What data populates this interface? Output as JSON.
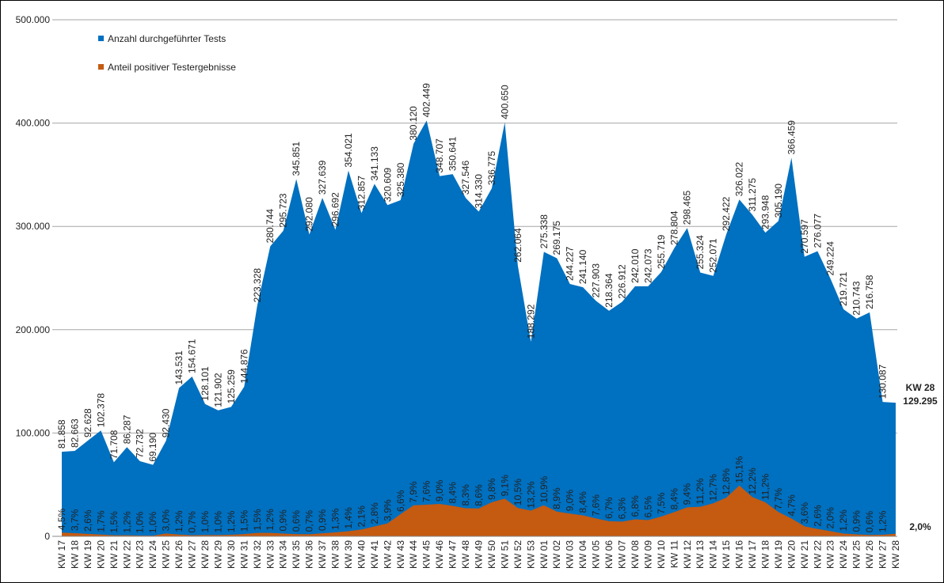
{
  "chart_data": {
    "type": "area",
    "categories": [
      "KW 17",
      "KW 18",
      "KW 19",
      "KW 20",
      "KW 21",
      "KW 22",
      "KW 23",
      "KW 24",
      "KW 25",
      "KW 26",
      "KW 27",
      "KW 28",
      "KW 29",
      "KW 30",
      "KW 31",
      "KW 32",
      "KW 33",
      "KW 34",
      "KW 35",
      "KW 36",
      "KW 37",
      "KW 38",
      "KW 39",
      "KW 40",
      "KW 41",
      "KW 42",
      "KW 43",
      "KW 44",
      "KW 45",
      "KW 46",
      "KW 47",
      "KW 48",
      "KW 49",
      "KW 50",
      "KW 51",
      "KW 52",
      "KW 53",
      "KW 01",
      "KW 02",
      "KW 03",
      "KW 04",
      "KW 05",
      "KW 06",
      "KW 07",
      "KW 08",
      "KW 09",
      "KW 10",
      "KW 11",
      "KW 12",
      "KW 13",
      "KW 14",
      "KW 15",
      "KW 16",
      "KW 17",
      "KW 18",
      "KW 19",
      "KW 20",
      "KW 21",
      "KW 22",
      "KW 23",
      "KW 24",
      "KW 25",
      "KW 26",
      "KW 27",
      "KW 28"
    ],
    "series": [
      {
        "name": "Anzahl durchgeführter Tests",
        "color": "#0070c0",
        "values": [
          81858,
          82663,
          92628,
          102378,
          71708,
          86287,
          72732,
          69190,
          92430,
          143531,
          154671,
          128101,
          121902,
          125259,
          144876,
          223328,
          280744,
          295723,
          345851,
          292080,
          327639,
          296692,
          354021,
          312857,
          341133,
          320609,
          325380,
          380120,
          402449,
          348707,
          350641,
          327546,
          314330,
          336775,
          400650,
          262064,
          188292,
          275338,
          269175,
          244227,
          241140,
          227903,
          218364,
          226912,
          242010,
          242073,
          255719,
          278804,
          298465,
          255324,
          252071,
          292422,
          326022,
          311275,
          293948,
          305190,
          366459,
          270597,
          276077,
          249224,
          219721,
          210743,
          216758,
          130087,
          129295
        ],
        "value_labels": [
          "81.858",
          "82.663",
          "92.628",
          "102.378",
          "71.708",
          "86.287",
          "72.732",
          "69.190",
          "92.430",
          "143.531",
          "154.671",
          "128.101",
          "121.902",
          "125.259",
          "144.876",
          "223.328",
          "280.744",
          "295.723",
          "345.851",
          "292.080",
          "327.639",
          "296.692",
          "354.021",
          "312.857",
          "341.133",
          "320.609",
          "325.380",
          "380.120",
          "402.449",
          "348.707",
          "350.641",
          "327.546",
          "314.330",
          "336.775",
          "400.650",
          "262.064",
          "188.292",
          "275.338",
          "269.175",
          "244.227",
          "241.140",
          "227.903",
          "218.364",
          "226.912",
          "242.010",
          "242.073",
          "255.719",
          "278.804",
          "298.465",
          "255.324",
          "252.071",
          "292.422",
          "326.022",
          "311.275",
          "293.948",
          "305.190",
          "366.459",
          "270.597",
          "276.077",
          "249.224",
          "219.721",
          "210.743",
          "216.758",
          "130.087",
          "129.295"
        ]
      },
      {
        "name": "Anteil positiver Testergebnisse",
        "color": "#c55a11",
        "values": [
          4.5,
          3.7,
          2.6,
          1.7,
          1.5,
          1.2,
          1.0,
          1.0,
          3.0,
          1.2,
          0.7,
          1.0,
          1.0,
          1.2,
          1.5,
          1.5,
          1.2,
          0.9,
          0.6,
          0.7,
          0.9,
          1.3,
          1.4,
          2.1,
          2.8,
          3.9,
          6.6,
          7.9,
          7.6,
          9.0,
          8.4,
          8.3,
          8.6,
          9.8,
          9.1,
          10.5,
          13.2,
          10.9,
          8.9,
          9.0,
          8.4,
          7.6,
          6.7,
          6.3,
          6.8,
          6.5,
          7.5,
          8.4,
          9.4,
          11.2,
          12.7,
          12.8,
          15.1,
          12.2,
          11.2,
          7.7,
          4.7,
          3.6,
          2.6,
          2.0,
          1.2,
          0.9,
          0.6,
          1.2,
          2.0
        ],
        "value_labels": [
          "4,5%",
          "3,7%",
          "2,6%",
          "1,7%",
          "1,5%",
          "1,2%",
          "1,0%",
          "1,0%",
          "3,0%",
          "1,2%",
          "0,7%",
          "1,0%",
          "1,0%",
          "1,2%",
          "1,5%",
          "1,5%",
          "1,2%",
          "0,9%",
          "0,6%",
          "0,7%",
          "0,9%",
          "1,3%",
          "1,4%",
          "2,1%",
          "2,8%",
          "3,9%",
          "6,6%",
          "7,9%",
          "7,6%",
          "9,0%",
          "8,4%",
          "8,3%",
          "8,6%",
          "9,8%",
          "9,1%",
          "10,5%",
          "13,2%",
          "10,9%",
          "8,9%",
          "9,0%",
          "8,4%",
          "7,6%",
          "6,7%",
          "6,3%",
          "6,8%",
          "6,5%",
          "7,5%",
          "8,4%",
          "9,4%",
          "11,2%",
          "12,7%",
          "12,8%",
          "15,1%",
          "12,2%",
          "11,2%",
          "7,7%",
          "4,7%",
          "3,6%",
          "2,6%",
          "2,0%",
          "1,2%",
          "0,9%",
          "0,6%",
          "1,2%",
          "2,0%"
        ]
      }
    ],
    "annotations": [
      "KW 28"
    ],
    "ylim": [
      0,
      500000
    ],
    "yticks": [
      0,
      {
        "value": 100000,
        "label": "100.000"
      },
      {
        "value": 200000,
        "label": "200.000"
      },
      {
        "value": 300000,
        "label": "300.000"
      },
      {
        "value": 400000,
        "label": "400.000"
      },
      {
        "value": 500000,
        "label": "500.000"
      }
    ],
    "grid": true,
    "legend": "top-left"
  }
}
